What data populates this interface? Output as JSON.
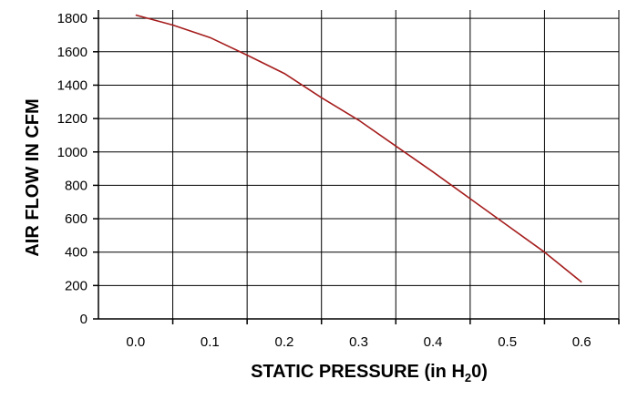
{
  "chart_data": {
    "type": "line",
    "title": "",
    "xlabel": "STATIC PRESSURE (in H",
    "xlabel_sub": "2",
    "xlabel_tail": "0)",
    "ylabel": "AIR FLOW IN CFM",
    "xlim": [
      -0.05,
      0.65
    ],
    "ylim": [
      0,
      1850
    ],
    "x_ticks": [
      "0.0",
      "0.1",
      "0.2",
      "0.3",
      "0.4",
      "0.5",
      "0.6"
    ],
    "x_tick_values": [
      0.0,
      0.1,
      0.2,
      0.3,
      0.4,
      0.5,
      0.6
    ],
    "y_ticks": [
      "0",
      "200",
      "400",
      "600",
      "800",
      "1000",
      "1200",
      "1400",
      "1600",
      "1800"
    ],
    "y_tick_values": [
      0,
      200,
      400,
      600,
      800,
      1000,
      1200,
      1400,
      1600,
      1800
    ],
    "x_gridlines": [
      0.05,
      0.15,
      0.25,
      0.35,
      0.45,
      0.55,
      0.65
    ],
    "y_gridlines": [
      200,
      400,
      600,
      800,
      1000,
      1200,
      1400,
      1600,
      1800
    ],
    "grid": true,
    "legend": "none",
    "series": [
      {
        "color": "#a51c1c",
        "x": [
          0.0,
          0.05,
          0.1,
          0.15,
          0.2,
          0.25,
          0.3,
          0.35,
          0.4,
          0.45,
          0.5,
          0.55,
          0.6
        ],
        "y": [
          1820,
          1760,
          1685,
          1580,
          1470,
          1325,
          1190,
          1035,
          880,
          720,
          560,
          400,
          220
        ]
      }
    ]
  }
}
